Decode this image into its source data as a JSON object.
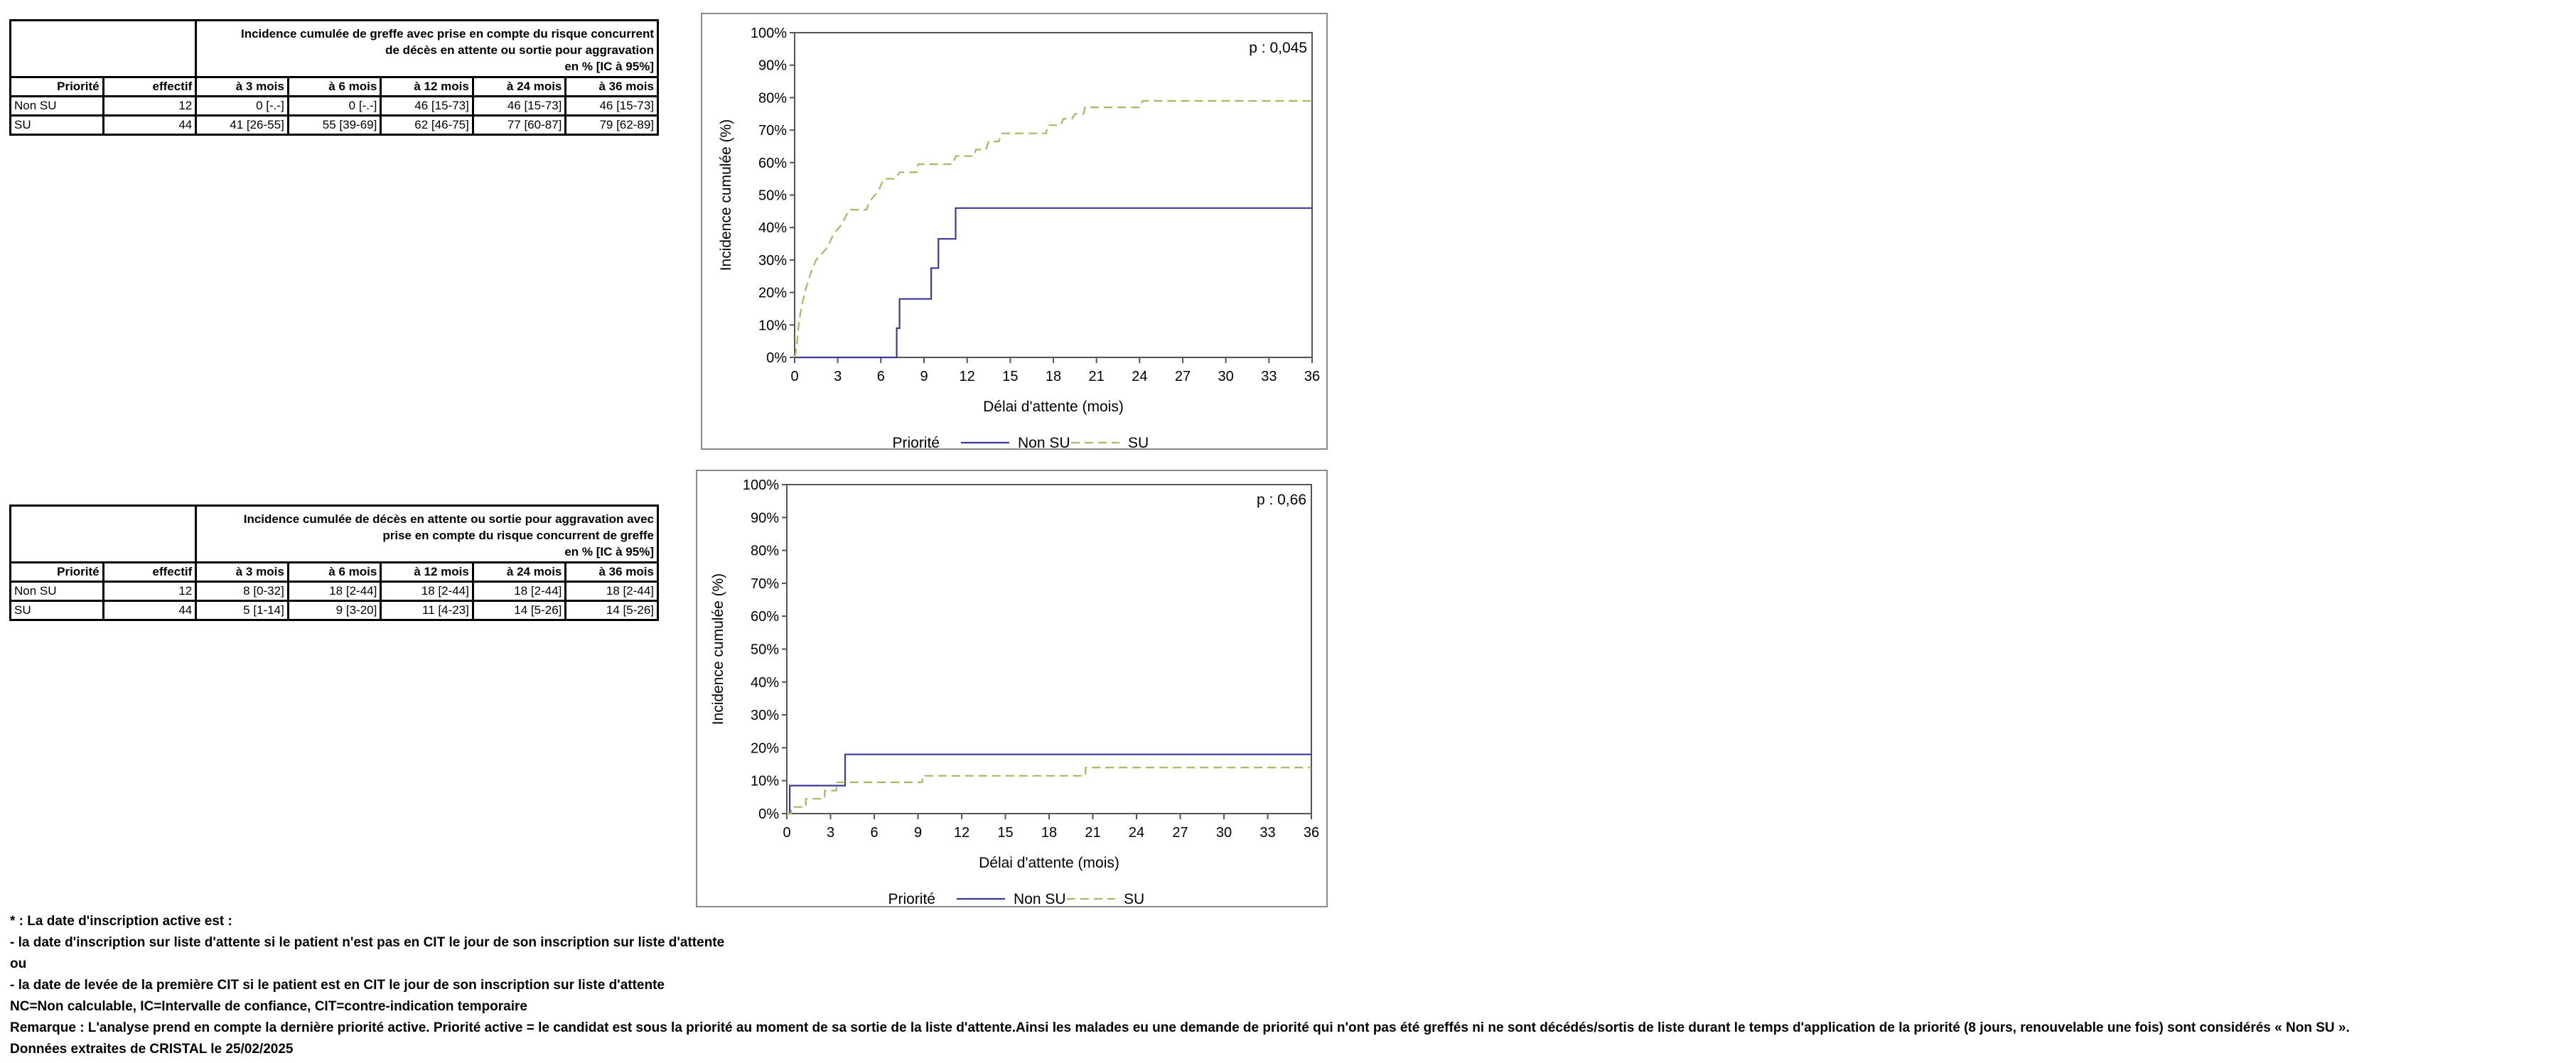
{
  "tables": [
    {
      "header_lines": [
        "Incidence cumulée de greffe avec prise en compte du risque concurrent",
        "de décès en attente ou sortie pour aggravation",
        "en % [IC à 95%]"
      ],
      "columns": [
        "Priorité",
        "effectif",
        "à 3 mois",
        "à 6 mois",
        "à 12 mois",
        "à 24 mois",
        "à 36 mois"
      ],
      "rows": [
        [
          "Non SU",
          "12",
          "0 [-.-]",
          "0 [-.-]",
          "46 [15-73]",
          "46 [15-73]",
          "46 [15-73]"
        ],
        [
          "SU",
          "44",
          "41 [26-55]",
          "55 [39-69]",
          "62 [46-75]",
          "77 [60-87]",
          "79 [62-89]"
        ]
      ]
    },
    {
      "header_lines": [
        "Incidence cumulée de décès en attente ou sortie pour aggravation avec",
        "prise en compte du risque concurrent de greffe",
        "en % [IC à 95%]"
      ],
      "columns": [
        "Priorité",
        "effectif",
        "à 3 mois",
        "à 6 mois",
        "à 12 mois",
        "à 24 mois",
        "à 36 mois"
      ],
      "rows": [
        [
          "Non SU",
          "12",
          "8 [0-32]",
          "18 [2-44]",
          "18 [2-44]",
          "18 [2-44]",
          "18 [2-44]"
        ],
        [
          "SU",
          "44",
          "5 [1-14]",
          "9 [3-20]",
          "11 [4-23]",
          "14 [5-26]",
          "14 [5-26]"
        ]
      ]
    }
  ],
  "chart_data": [
    {
      "type": "line",
      "step": true,
      "annotation": "p : 0,045",
      "xlabel": "Délai d'attente (mois)",
      "ylabel": "Incidence cumulée (%)",
      "xlim": [
        0,
        36
      ],
      "ylim": [
        0,
        100
      ],
      "x_ticks": [
        "0",
        "3",
        "6",
        "9",
        "12",
        "15",
        "18",
        "21",
        "24",
        "27",
        "30",
        "33",
        "36"
      ],
      "y_ticks": [
        "0%",
        "10%",
        "20%",
        "30%",
        "40%",
        "50%",
        "60%",
        "70%",
        "80%",
        "90%",
        "100%"
      ],
      "legend_title": "Priorité",
      "legend_position": "bottom",
      "series": [
        {
          "name": "Non SU",
          "color": "#3a3a9a",
          "dash": "solid",
          "points": [
            [
              0,
              0
            ],
            [
              7.1,
              0
            ],
            [
              7.1,
              9
            ],
            [
              7.3,
              9
            ],
            [
              7.3,
              18
            ],
            [
              9.5,
              18
            ],
            [
              9.5,
              27.5
            ],
            [
              10,
              27.5
            ],
            [
              10,
              36.5
            ],
            [
              11.2,
              36.5
            ],
            [
              11.2,
              46
            ],
            [
              36,
              46
            ]
          ]
        },
        {
          "name": "SU",
          "color": "#a8b860",
          "dash": "dashed",
          "points": [
            [
              0,
              0
            ],
            [
              0.1,
              2
            ],
            [
              0.2,
              6
            ],
            [
              0.3,
              11
            ],
            [
              0.5,
              16
            ],
            [
              0.7,
              20
            ],
            [
              0.9,
              23
            ],
            [
              1.2,
              27
            ],
            [
              1.5,
              30
            ],
            [
              1.9,
              32
            ],
            [
              2.3,
              34
            ],
            [
              2.6,
              37
            ],
            [
              2.9,
              39
            ],
            [
              3.3,
              41
            ],
            [
              3.5,
              43
            ],
            [
              3.8,
              45.5
            ],
            [
              5,
              45.5
            ],
            [
              5.2,
              48
            ],
            [
              5.6,
              50
            ],
            [
              5.9,
              52
            ],
            [
              6.2,
              55
            ],
            [
              7,
              55
            ],
            [
              7.3,
              57
            ],
            [
              8.5,
              57
            ],
            [
              8.6,
              59.5
            ],
            [
              11,
              59.5
            ],
            [
              11.2,
              62
            ],
            [
              12.5,
              62
            ],
            [
              12.6,
              64
            ],
            [
              13.3,
              64
            ],
            [
              13.5,
              66.5
            ],
            [
              14.2,
              66.5
            ],
            [
              14.4,
              69
            ],
            [
              17.5,
              69
            ],
            [
              17.6,
              71.5
            ],
            [
              18.5,
              71.5
            ],
            [
              18.7,
              73.5
            ],
            [
              19.3,
              73.5
            ],
            [
              19.5,
              75
            ],
            [
              20.1,
              75
            ],
            [
              20.2,
              77
            ],
            [
              24,
              77
            ],
            [
              24.2,
              79
            ],
            [
              36,
              79
            ]
          ]
        }
      ]
    },
    {
      "type": "line",
      "step": true,
      "annotation": "p : 0,66",
      "xlabel": "Délai d'attente (mois)",
      "ylabel": "Incidence cumulée (%)",
      "xlim": [
        0,
        36
      ],
      "ylim": [
        0,
        100
      ],
      "x_ticks": [
        "0",
        "3",
        "6",
        "9",
        "12",
        "15",
        "18",
        "21",
        "24",
        "27",
        "30",
        "33",
        "36"
      ],
      "y_ticks": [
        "0%",
        "10%",
        "20%",
        "30%",
        "40%",
        "50%",
        "60%",
        "70%",
        "80%",
        "90%",
        "100%"
      ],
      "legend_title": "Priorité",
      "legend_position": "bottom",
      "series": [
        {
          "name": "Non SU",
          "color": "#3a3a9a",
          "dash": "solid",
          "points": [
            [
              0,
              0
            ],
            [
              0.2,
              0
            ],
            [
              0.2,
              8.5
            ],
            [
              4,
              8.5
            ],
            [
              4,
              18
            ],
            [
              36,
              18
            ]
          ]
        },
        {
          "name": "SU",
          "color": "#a8b860",
          "dash": "dashed",
          "points": [
            [
              0,
              0
            ],
            [
              0.3,
              0
            ],
            [
              0.3,
              2
            ],
            [
              1.3,
              2
            ],
            [
              1.3,
              4.5
            ],
            [
              2.6,
              4.5
            ],
            [
              2.6,
              7
            ],
            [
              3.4,
              7
            ],
            [
              3.4,
              9.5
            ],
            [
              9.3,
              9.5
            ],
            [
              9.3,
              11.5
            ],
            [
              20.5,
              11.5
            ],
            [
              20.5,
              14
            ],
            [
              36,
              14
            ]
          ]
        }
      ]
    }
  ],
  "notes": [
    "* : La date d'inscription active est :",
    "- la date d'inscription sur liste d'attente si le patient n'est pas en CIT le jour de son inscription sur liste d'attente",
    "ou",
    "- la date de levée de la première CIT si le patient est en CIT le jour de son inscription sur liste d'attente",
    "NC=Non calculable, IC=Intervalle de confiance, CIT=contre-indication temporaire",
    "Remarque : L'analyse prend en compte la dernière priorité active. Priorité active = le candidat est sous la priorité au moment de sa sortie de la liste d'attente.Ainsi les malades eu une demande de priorité qui n'ont pas été greffés ni ne sont décédés/sortis de liste durant le temps d'application de la priorité (8 jours, renouvelable une fois) sont considérés « Non SU ».",
    "Données extraites de CRISTAL le 25/02/2025"
  ]
}
